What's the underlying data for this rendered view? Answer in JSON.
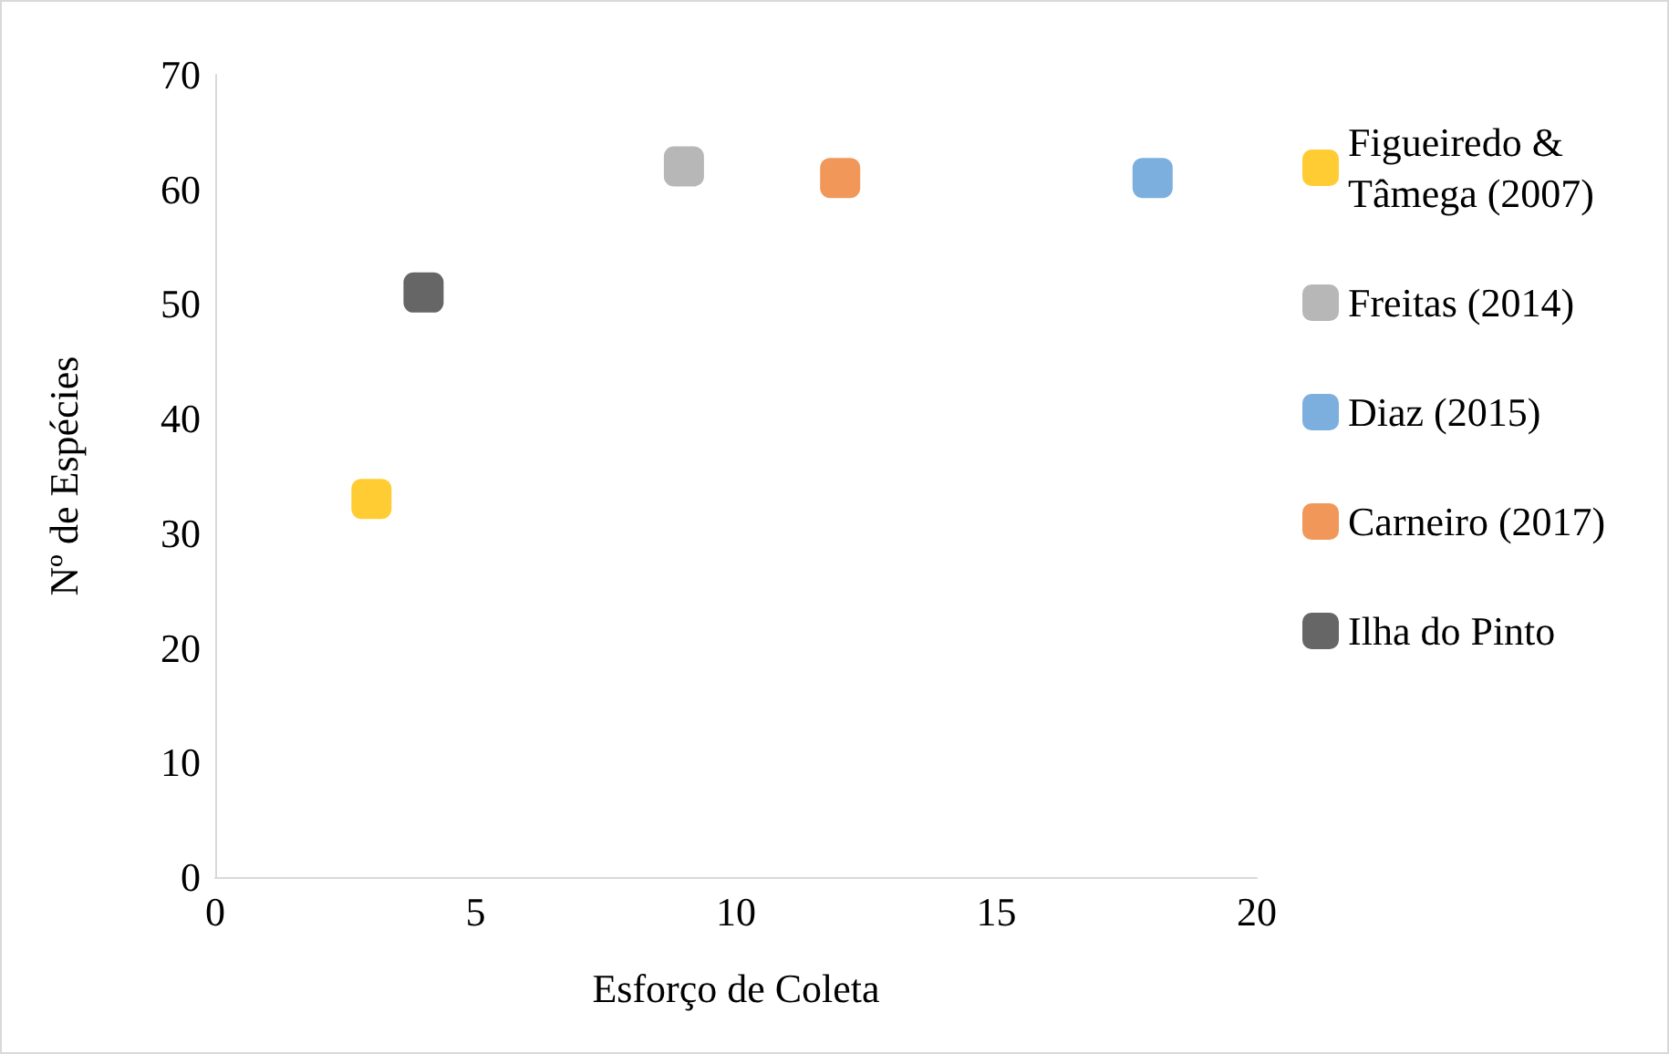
{
  "chart_data": {
    "type": "scatter",
    "xlabel": "Esforço de Coleta",
    "ylabel": "Nº de Espécies",
    "series": [
      {
        "name": "Figueiredo & Tâmega (2007)",
        "color": "#ffc000",
        "x": [
          3
        ],
        "values": [
          33
        ]
      },
      {
        "name": "Freitas (2014)",
        "color": "#a5a5a5",
        "x": [
          9
        ],
        "values": [
          62
        ]
      },
      {
        "name": "Diaz (2015)",
        "color": "#5b9bd5",
        "x": [
          18
        ],
        "values": [
          61
        ]
      },
      {
        "name": "Carneiro (2017)",
        "color": "#ed7d31",
        "x": [
          12
        ],
        "values": [
          61
        ]
      },
      {
        "name": "Ilha do Pinto",
        "color": "#404040",
        "x": [
          4
        ],
        "values": [
          51
        ]
      }
    ],
    "xlim": [
      0,
      20
    ],
    "xticks": [
      0,
      5,
      10,
      15,
      20
    ],
    "ylim": [
      0,
      70
    ],
    "yticks": [
      0,
      10,
      20,
      30,
      40,
      50,
      60,
      70
    ],
    "grid": false,
    "legend": "right",
    "marker": "square"
  }
}
